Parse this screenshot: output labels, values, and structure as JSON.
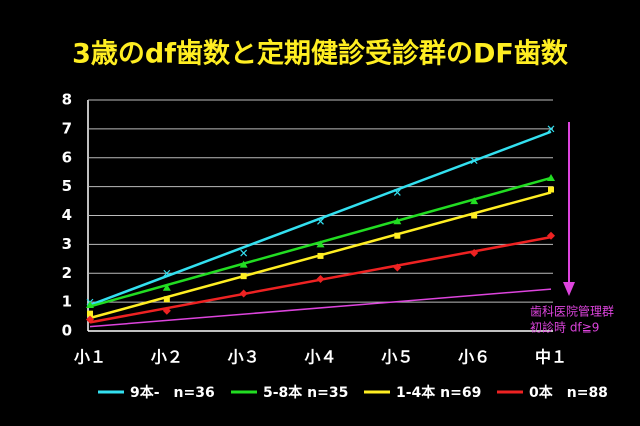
{
  "chart_data": {
    "type": "line",
    "title": "3歳のdf歯数と定期健診受診群のDF歯数",
    "categories": [
      "小１",
      "小２",
      "小３",
      "小４",
      "小５",
      "小６",
      "中１"
    ],
    "ylim": [
      0,
      8
    ],
    "yticks": [
      0,
      1,
      2,
      3,
      4,
      5,
      6,
      7,
      8
    ],
    "grid": true,
    "series": [
      {
        "name": "9本-　n=36",
        "color": "#33e0f0",
        "values": [
          1.0,
          2.0,
          2.7,
          3.8,
          4.8,
          5.9,
          7.0
        ],
        "trend": [
          0.9,
          6.9
        ]
      },
      {
        "name": "5-8本 n=35",
        "color": "#22dd22",
        "values": [
          0.9,
          1.5,
          2.3,
          3.0,
          3.8,
          4.5,
          5.3
        ],
        "trend": [
          0.85,
          5.3
        ]
      },
      {
        "name": "1-4本 n=69",
        "color": "#ffee22",
        "values": [
          0.6,
          1.1,
          1.9,
          2.6,
          3.3,
          4.0,
          4.9
        ],
        "trend": [
          0.45,
          4.8
        ]
      },
      {
        "name": "0本　n=88",
        "color": "#ee2222",
        "values": [
          0.4,
          0.7,
          1.3,
          1.8,
          2.2,
          2.7,
          3.3
        ],
        "trend": [
          0.3,
          3.25
        ]
      }
    ],
    "reference": {
      "labels": [
        "歯科医院管理群",
        "初診時 df≧9"
      ],
      "color": "#dd44dd",
      "trend": [
        0.15,
        1.45
      ]
    }
  }
}
